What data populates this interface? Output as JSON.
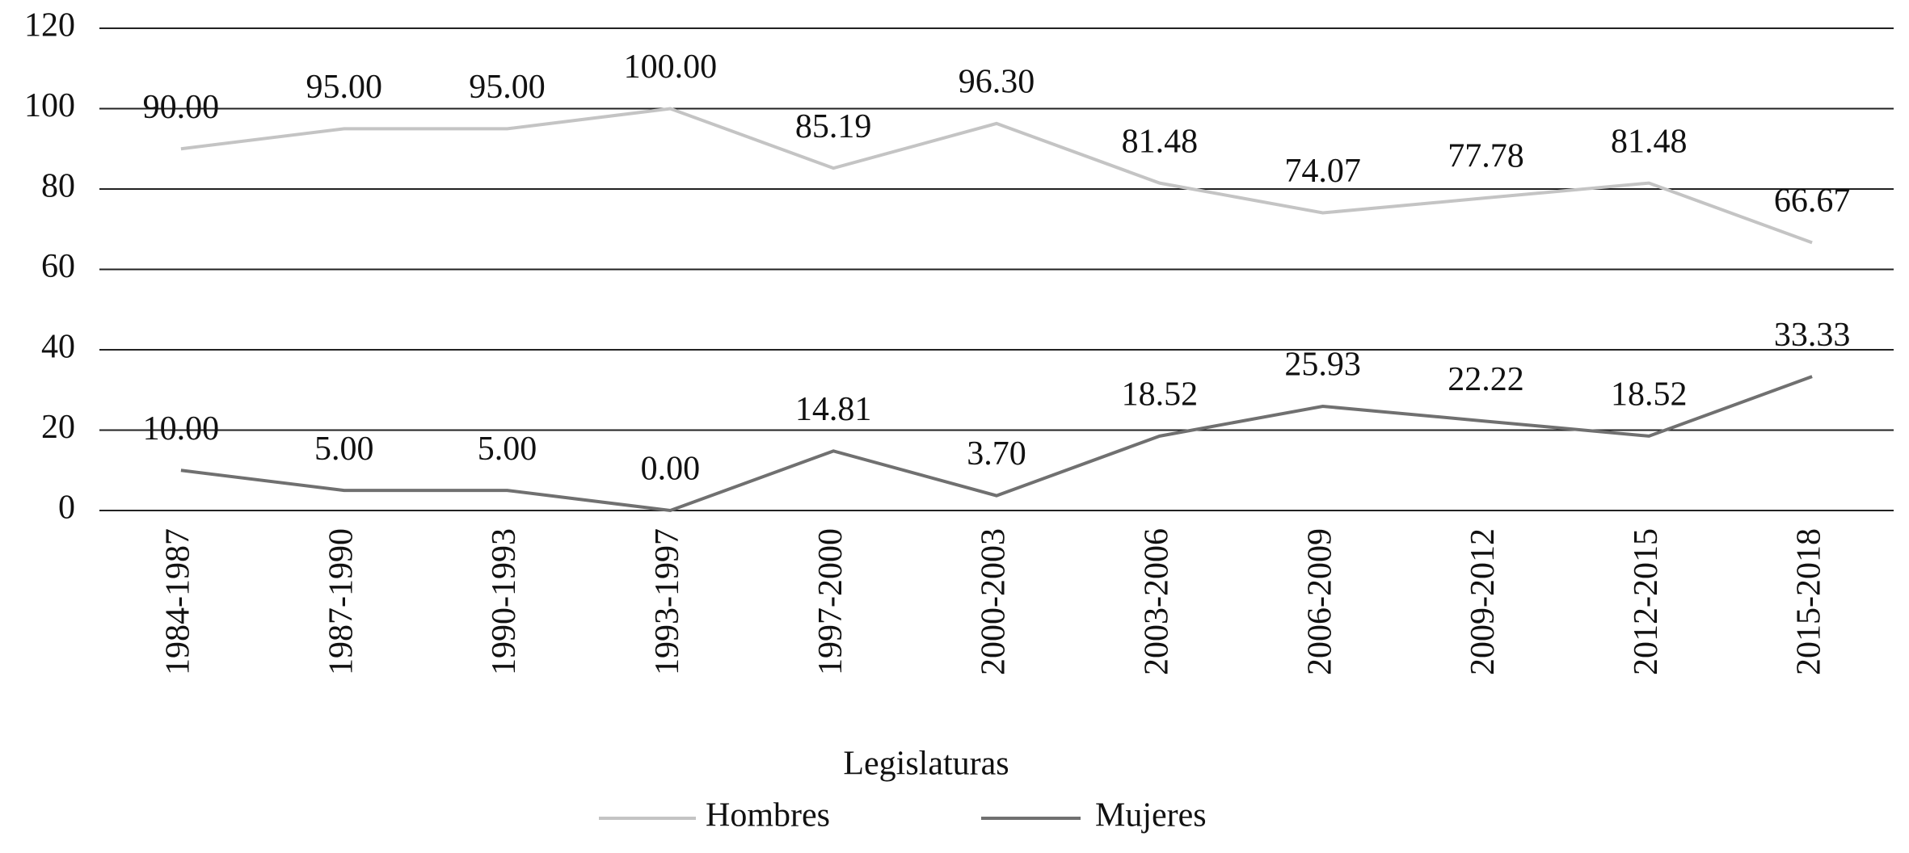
{
  "chart_data": {
    "type": "line",
    "x_label": "Legislaturas",
    "categories": [
      "1984-1987",
      "1987-1990",
      "1990-1993",
      "1993-1997",
      "1997-2000",
      "2000-2003",
      "2003-2006",
      "2006-2009",
      "2009-2012",
      "2012-2015",
      "2015-2018"
    ],
    "series": [
      {
        "name": "Hombres",
        "color": "#c4c4c4",
        "values": [
          90,
          95,
          95,
          100,
          85.19,
          96.3,
          81.48,
          74.07,
          77.78,
          81.48,
          66.67
        ],
        "value_labels": [
          "90.00",
          "95.00",
          "95.00",
          "100.00",
          "85.19",
          "96.30",
          "81.48",
          "74.07",
          "77.78",
          "81.48",
          "66.67"
        ]
      },
      {
        "name": "Mujeres",
        "color": "#707070",
        "values": [
          10,
          5,
          5,
          0,
          14.81,
          3.7,
          18.52,
          25.93,
          22.22,
          18.52,
          33.33
        ],
        "value_labels": [
          "10.00",
          "5.00",
          "5.00",
          "0.00",
          "14.81",
          "3.70",
          "18.52",
          "25.93",
          "22.22",
          "18.52",
          "33.33"
        ]
      }
    ],
    "ylim": [
      0,
      120
    ],
    "yticks": [
      0,
      20,
      40,
      60,
      80,
      100,
      120
    ],
    "grid": true,
    "legend": "bottom"
  }
}
